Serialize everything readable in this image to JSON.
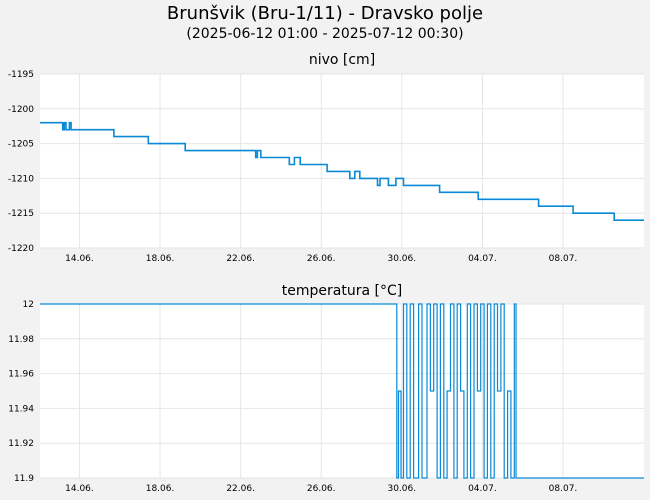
{
  "header": {
    "title": "Brunšvik (Bru-1/11) - Dravsko polje",
    "subtitle": "(2025-06-12 01:00 - 2025-07-12 00:30)"
  },
  "colors": {
    "line": "#0a8ad6",
    "grid": "#e6e6e6",
    "plot_bg": "#ffffff",
    "page_bg": "#f2f2f2"
  },
  "chart_data": [
    {
      "type": "line",
      "title": "nivo [cm]",
      "xlim": [
        "2025-06-12 01:00",
        "2025-07-12 00:30"
      ],
      "ylim": [
        -1220,
        -1195
      ],
      "yticks": [
        -1195,
        -1200,
        -1205,
        -1210,
        -1215,
        -1220
      ],
      "xticks": [
        "2025-06-14",
        "2025-06-18",
        "2025-06-22",
        "2025-06-26",
        "2025-06-30",
        "2025-07-04",
        "2025-07-08"
      ],
      "xtick_labels": [
        "14.06.",
        "18.06.",
        "22.06.",
        "26.06.",
        "30.06.",
        "04.07.",
        "08.07."
      ],
      "grid": true,
      "series": [
        {
          "x": [
            "2025-06-12 01:00",
            "2025-06-13 04:00",
            "2025-06-13 06:00",
            "2025-06-13 08:00",
            "2025-06-13 12:00",
            "2025-06-13 14:00",
            "2025-06-15 17:00",
            "2025-06-17 10:00",
            "2025-06-19 06:00",
            "2025-06-22 18:00",
            "2025-06-22 20:00",
            "2025-06-23 00:00",
            "2025-06-24 10:00",
            "2025-06-24 16:00",
            "2025-06-24 23:00",
            "2025-06-26 07:00",
            "2025-06-27 10:00",
            "2025-06-27 16:00",
            "2025-06-27 22:00",
            "2025-06-28 19:00",
            "2025-06-28 22:00",
            "2025-06-29 08:00",
            "2025-06-29 17:00",
            "2025-06-30 02:00",
            "2025-06-30 08:00",
            "2025-07-01 21:00",
            "2025-07-02 06:00",
            "2025-07-03 19:00",
            "2025-07-06 19:00",
            "2025-07-08 12:00",
            "2025-07-10 13:00",
            "2025-07-12 00:30"
          ],
          "y": [
            -1202,
            -1203,
            -1202,
            -1203,
            -1202,
            -1203,
            -1204,
            -1205,
            -1206,
            -1207,
            -1206,
            -1207,
            -1208,
            -1207,
            -1208,
            -1209,
            -1210,
            -1209,
            -1210,
            -1211,
            -1210,
            -1211,
            -1210,
            -1211,
            -1211,
            -1212,
            -1212,
            -1213,
            -1214,
            -1215,
            -1216,
            -1216
          ]
        }
      ]
    },
    {
      "type": "line",
      "title": "temperatura [°C]",
      "xlim": [
        "2025-06-12 01:00",
        "2025-07-12 00:30"
      ],
      "ylim": [
        11.9,
        12
      ],
      "yticks": [
        12,
        11.98,
        11.96,
        11.94,
        11.92,
        11.9
      ],
      "xticks": [
        "2025-06-14",
        "2025-06-18",
        "2025-06-22",
        "2025-06-26",
        "2025-06-30",
        "2025-07-04",
        "2025-07-08"
      ],
      "xtick_labels": [
        "14.06.",
        "18.06.",
        "22.06.",
        "26.06.",
        "30.06.",
        "04.07.",
        "08.07."
      ],
      "grid": true,
      "series": [
        {
          "x": [
            "2025-06-12 01:00",
            "2025-06-29 18:00",
            "2025-06-29 20:00",
            "2025-06-29 23:00",
            "2025-06-30 02:00",
            "2025-06-30 06:00",
            "2025-06-30 10:00",
            "2025-06-30 14:00",
            "2025-06-30 18:00",
            "2025-06-30 20:00",
            "2025-07-01 00:00",
            "2025-07-01 06:00",
            "2025-07-01 10:00",
            "2025-07-01 14:00",
            "2025-07-01 18:00",
            "2025-07-01 22:00",
            "2025-07-02 02:00",
            "2025-07-02 06:00",
            "2025-07-02 10:00",
            "2025-07-02 14:00",
            "2025-07-02 18:00",
            "2025-07-02 22:00",
            "2025-07-03 02:00",
            "2025-07-03 06:00",
            "2025-07-03 10:00",
            "2025-07-03 14:00",
            "2025-07-03 18:00",
            "2025-07-03 22:00",
            "2025-07-04 02:00",
            "2025-07-04 06:00",
            "2025-07-04 10:00",
            "2025-07-04 14:00",
            "2025-07-04 18:00",
            "2025-07-04 22:00",
            "2025-07-05 02:00",
            "2025-07-05 06:00",
            "2025-07-05 10:00",
            "2025-07-05 14:00",
            "2025-07-05 16:00",
            "2025-07-05 20:00",
            "2025-07-12 00:30"
          ],
          "y": [
            12,
            11.9,
            11.95,
            11.9,
            12,
            11.9,
            12,
            11.9,
            11.9,
            12,
            11.9,
            12,
            11.95,
            12,
            11.9,
            12,
            11.9,
            11.95,
            12,
            11.9,
            12,
            11.95,
            11.9,
            12,
            11.9,
            12,
            11.95,
            12,
            11.9,
            12,
            11.9,
            12,
            11.95,
            12,
            11.9,
            11.95,
            11.9,
            12,
            11.9,
            11.9,
            11.9
          ]
        }
      ]
    }
  ]
}
